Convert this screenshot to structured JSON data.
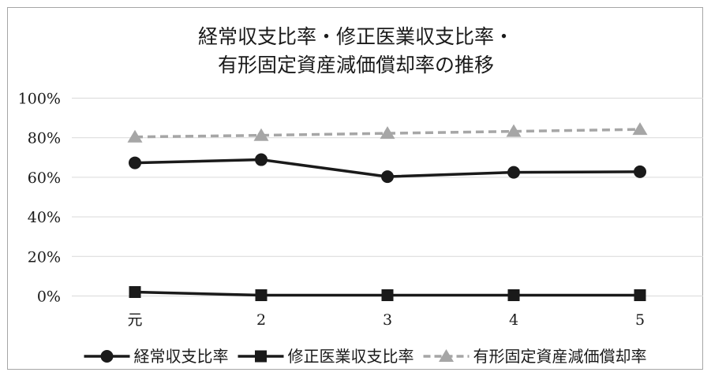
{
  "chart_data": {
    "type": "line",
    "title": [
      "経常収支比率・修正医業収支比率・",
      "有形固定資産減価償却率の推移"
    ],
    "xlabel": "",
    "ylabel": "",
    "categories": [
      "元",
      "2",
      "3",
      "4",
      "5"
    ],
    "y_tick_labels": [
      "0%",
      "20%",
      "40%",
      "60%",
      "80%",
      "100%"
    ],
    "ylim": [
      0,
      100
    ],
    "grid": true,
    "legend_position": "bottom",
    "series": [
      {
        "name": "経常収支比率",
        "values": [
          67.3,
          68.9,
          60.3,
          62.5,
          62.8
        ],
        "color": "#1a1a1a",
        "marker": "circle",
        "line_style": "solid"
      },
      {
        "name": "修正医業収支比率",
        "values": [
          2.0,
          0.4,
          0.4,
          0.4,
          0.4
        ],
        "color": "#1a1a1a",
        "marker": "square",
        "line_style": "solid"
      },
      {
        "name": "有形固定資産減価償却率",
        "values": [
          80.4,
          81.2,
          82.2,
          83.2,
          84.2
        ],
        "color": "#a6a6a6",
        "marker": "triangle",
        "line_style": "dashed"
      }
    ]
  }
}
